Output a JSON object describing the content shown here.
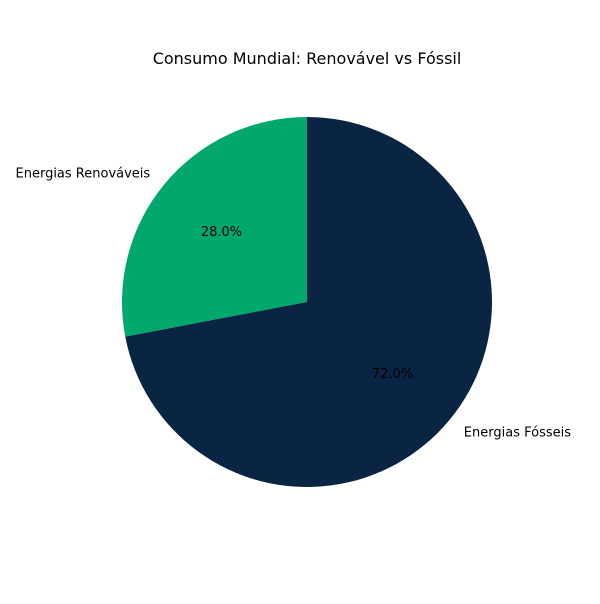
{
  "chart_data": {
    "type": "pie",
    "title": "Consumo Mundial: Renovável vs Fóssil",
    "start_angle_deg": 90,
    "direction": "counterclockwise",
    "slices": [
      {
        "label": "Energias Renováveis",
        "value": 28.0,
        "pct_label": "28.0%",
        "color": "#00a86b"
      },
      {
        "label": "Energias Fósseis",
        "value": 72.0,
        "pct_label": "72.0%",
        "color": "#0a2444"
      }
    ]
  }
}
